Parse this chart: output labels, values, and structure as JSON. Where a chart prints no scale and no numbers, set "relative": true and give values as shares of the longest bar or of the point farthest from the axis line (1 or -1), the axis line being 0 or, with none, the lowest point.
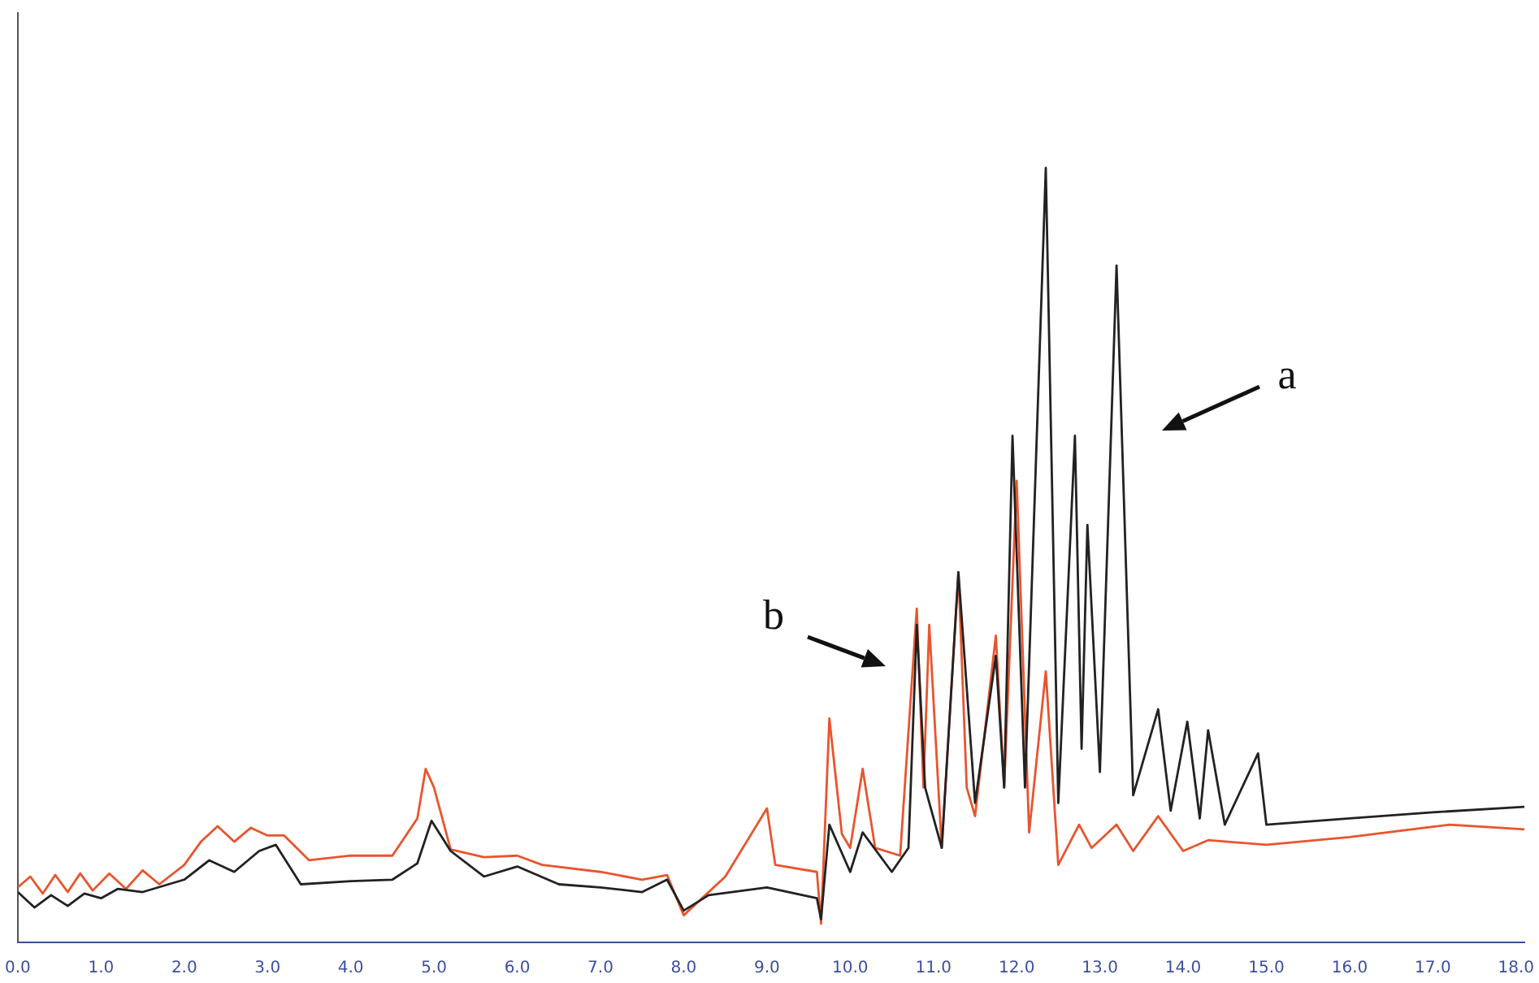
{
  "chart_data": {
    "type": "line",
    "relative": true,
    "grid": false,
    "legend": false,
    "marker": "none",
    "line_style": "solid",
    "xlim": [
      0,
      18.1
    ],
    "xticks": [
      {
        "value": 0,
        "label": "0.0"
      },
      {
        "value": 1,
        "label": "1.0"
      },
      {
        "value": 2,
        "label": "2.0"
      },
      {
        "value": 3,
        "label": "3.0"
      },
      {
        "value": 4,
        "label": "4.0"
      },
      {
        "value": 5,
        "label": "5.0"
      },
      {
        "value": 6,
        "label": "6.0"
      },
      {
        "value": 7,
        "label": "7.0"
      },
      {
        "value": 8,
        "label": "8.0"
      },
      {
        "value": 9,
        "label": "9.0"
      },
      {
        "value": 10,
        "label": "10.0"
      },
      {
        "value": 11,
        "label": "11.0"
      },
      {
        "value": 12,
        "label": "12.0"
      },
      {
        "value": 13,
        "label": "13.0"
      },
      {
        "value": 14,
        "label": "14.0"
      },
      {
        "value": 15,
        "label": "15.0"
      },
      {
        "value": 16,
        "label": "16.0"
      },
      {
        "value": 17,
        "label": "17.0"
      },
      {
        "value": 18,
        "label": "18.0"
      }
    ],
    "tick_labels": "x",
    "annotations": [
      "a",
      "b"
    ],
    "series": [
      {
        "color": "#e8552e",
        "x": [
          0,
          0.15,
          0.3,
          0.45,
          0.6,
          0.75,
          0.9,
          1.1,
          1.3,
          1.5,
          1.7,
          2.0,
          2.2,
          2.4,
          2.6,
          2.8,
          3.0,
          3.2,
          3.5,
          4.0,
          4.5,
          4.8,
          4.9,
          5.0,
          5.2,
          5.6,
          6.0,
          6.3,
          7.0,
          7.5,
          7.8,
          8.0,
          8.5,
          9.0,
          9.1,
          9.6,
          9.65,
          9.75,
          9.9,
          10.0,
          10.15,
          10.3,
          10.6,
          10.8,
          10.88,
          10.95,
          11.1,
          11.3,
          11.4,
          11.5,
          11.75,
          11.85,
          12.0,
          12.15,
          12.35,
          12.5,
          12.75,
          12.9,
          13.2,
          13.4,
          13.7,
          14.0,
          14.3,
          15.0,
          16.0,
          17.2,
          18.1
        ],
        "values": [
          0.071,
          0.085,
          0.063,
          0.087,
          0.065,
          0.089,
          0.067,
          0.089,
          0.069,
          0.093,
          0.075,
          0.1,
          0.13,
          0.15,
          0.13,
          0.148,
          0.138,
          0.138,
          0.106,
          0.112,
          0.112,
          0.16,
          0.224,
          0.2,
          0.12,
          0.11,
          0.112,
          0.1,
          0.091,
          0.081,
          0.087,
          0.035,
          0.085,
          0.173,
          0.1,
          0.091,
          0.024,
          0.289,
          0.14,
          0.122,
          0.224,
          0.122,
          0.112,
          0.431,
          0.2,
          0.41,
          0.122,
          0.478,
          0.2,
          0.163,
          0.396,
          0.2,
          0.596,
          0.142,
          0.35,
          0.1,
          0.152,
          0.122,
          0.152,
          0.118,
          0.163,
          0.118,
          0.132,
          0.126,
          0.136,
          0.152,
          0.146
        ]
      },
      {
        "color": "#222222",
        "x": [
          0,
          0.2,
          0.4,
          0.6,
          0.8,
          1.0,
          1.2,
          1.5,
          2.0,
          2.3,
          2.6,
          2.9,
          3.1,
          3.4,
          4.0,
          4.5,
          4.8,
          4.97,
          5.2,
          5.6,
          6.0,
          6.5,
          7.0,
          7.5,
          7.8,
          8.0,
          8.3,
          9.0,
          9.6,
          9.65,
          9.75,
          10.0,
          10.15,
          10.5,
          10.7,
          10.8,
          10.9,
          11.1,
          11.3,
          11.5,
          11.75,
          11.85,
          11.95,
          12.1,
          12.35,
          12.5,
          12.7,
          12.78,
          12.85,
          13.0,
          13.2,
          13.4,
          13.7,
          13.85,
          14.05,
          14.2,
          14.3,
          14.5,
          14.9,
          15.0,
          16.0,
          17.0,
          18.1
        ],
        "values": [
          0.065,
          0.045,
          0.061,
          0.047,
          0.063,
          0.057,
          0.069,
          0.065,
          0.081,
          0.106,
          0.091,
          0.118,
          0.126,
          0.075,
          0.079,
          0.081,
          0.102,
          0.157,
          0.118,
          0.085,
          0.098,
          0.075,
          0.071,
          0.065,
          0.081,
          0.041,
          0.061,
          0.071,
          0.057,
          0.03,
          0.152,
          0.091,
          0.142,
          0.091,
          0.122,
          0.41,
          0.2,
          0.122,
          0.478,
          0.18,
          0.37,
          0.2,
          0.654,
          0.2,
          1.0,
          0.18,
          0.654,
          0.25,
          0.539,
          0.22,
          0.874,
          0.19,
          0.301,
          0.17,
          0.285,
          0.16,
          0.274,
          0.152,
          0.244,
          0.152,
          0.16,
          0.168,
          0.175
        ]
      }
    ]
  }
}
